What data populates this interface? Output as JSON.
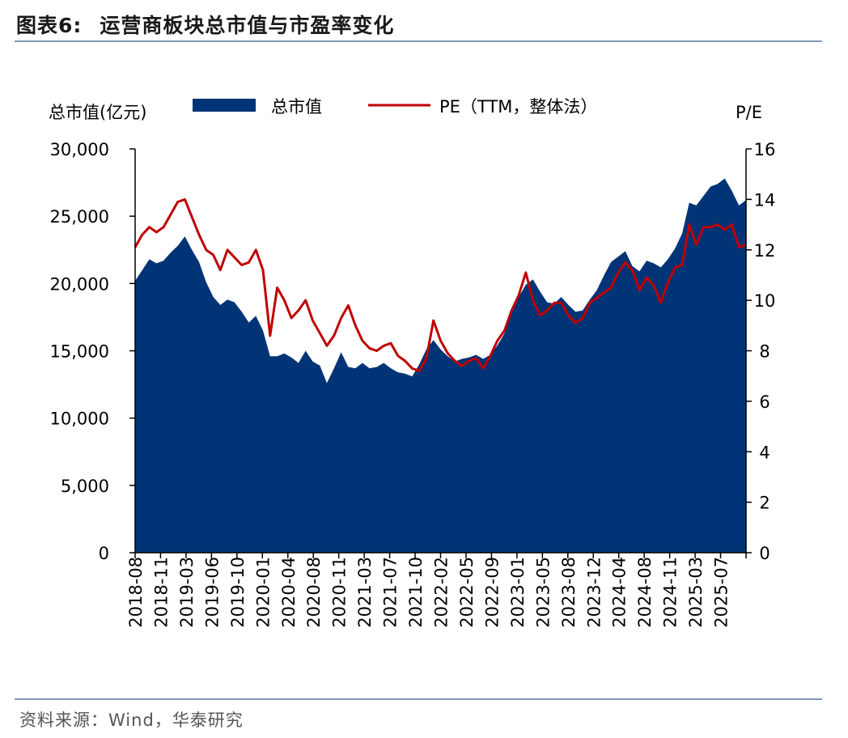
{
  "header": {
    "figure_no": "图表6:",
    "title": "运营商板块总市值与市盈率变化"
  },
  "footer": {
    "source": "资料来源：Wind，华泰研究"
  },
  "colors": {
    "market_cap": "#003476",
    "pe": "#c00000",
    "rule": "#8096b4"
  },
  "chart_data": {
    "type": "area",
    "left_axis": {
      "label": "总市值(亿元)",
      "ylim": [
        0,
        30000
      ],
      "ticks": [
        0,
        5000,
        10000,
        15000,
        20000,
        25000,
        30000
      ],
      "tick_labels": [
        "0",
        "5,000",
        "10,000",
        "15,000",
        "20,000",
        "25,000",
        "30,000"
      ]
    },
    "right_axis": {
      "label": "P/E",
      "ylim": [
        0,
        16
      ],
      "ticks": [
        0,
        2,
        4,
        6,
        8,
        10,
        12,
        14,
        16
      ],
      "tick_labels": [
        "0",
        "2",
        "4",
        "6",
        "8",
        "10",
        "12",
        "14",
        "16"
      ]
    },
    "x_tick_labels": [
      "2018-08",
      "2018-11",
      "2019-03",
      "2019-06",
      "2019-10",
      "2020-01",
      "2020-04",
      "2020-08",
      "2020-11",
      "2021-03",
      "2021-07",
      "2021-10",
      "2022-02",
      "2022-05",
      "2022-09",
      "2023-01",
      "2023-05",
      "2023-08",
      "2023-12",
      "2024-04",
      "2024-08",
      "2024-11",
      "2025-03",
      "2025-07"
    ],
    "legend": [
      {
        "name": "总市值",
        "kind": "area"
      },
      {
        "name": "PE（TTM，整体法）",
        "kind": "line"
      }
    ],
    "legend_position": "top-center",
    "grid": false,
    "series": [
      {
        "name": "总市值",
        "axis": "left",
        "x": [
          "2018-08",
          "2018-09",
          "2018-10",
          "2018-11",
          "2018-12",
          "2019-01",
          "2019-02",
          "2019-03",
          "2019-04",
          "2019-05",
          "2019-06",
          "2019-07",
          "2019-08",
          "2019-09",
          "2019-10",
          "2019-11",
          "2019-12",
          "2020-01",
          "2020-02",
          "2020-03",
          "2020-04",
          "2020-05",
          "2020-06",
          "2020-07",
          "2020-08",
          "2020-09",
          "2020-10",
          "2020-11",
          "2020-12",
          "2021-01",
          "2021-02",
          "2021-03",
          "2021-04",
          "2021-05",
          "2021-06",
          "2021-07",
          "2021-08",
          "2021-09",
          "2021-10",
          "2021-11",
          "2021-12",
          "2022-01",
          "2022-02",
          "2022-03",
          "2022-04",
          "2022-05",
          "2022-06",
          "2022-07",
          "2022-08",
          "2022-09",
          "2022-10",
          "2022-11",
          "2022-12",
          "2023-01",
          "2023-02",
          "2023-03",
          "2023-04",
          "2023-05",
          "2023-06",
          "2023-07",
          "2023-08",
          "2023-09",
          "2023-10",
          "2023-11",
          "2023-12",
          "2024-01",
          "2024-02",
          "2024-03",
          "2024-04",
          "2024-05",
          "2024-06",
          "2024-07",
          "2024-08",
          "2024-09",
          "2024-10",
          "2024-11",
          "2024-12",
          "2025-01",
          "2025-02",
          "2025-03",
          "2025-04",
          "2025-05",
          "2025-06",
          "2025-07",
          "2025-08",
          "2025-09",
          "2025-10"
        ],
        "values": [
          20200,
          21000,
          21800,
          21500,
          21700,
          22300,
          22800,
          23500,
          22500,
          21600,
          20100,
          19000,
          18400,
          18800,
          18600,
          17900,
          17100,
          17600,
          16500,
          14600,
          14600,
          14800,
          14500,
          14100,
          15000,
          14200,
          13900,
          12600,
          13700,
          14900,
          13800,
          13700,
          14100,
          13700,
          13800,
          14100,
          13700,
          13400,
          13300,
          13100,
          14000,
          15100,
          15800,
          15100,
          14600,
          14200,
          14400,
          14500,
          14700,
          14400,
          14700,
          15400,
          16300,
          17800,
          19000,
          19900,
          20300,
          19400,
          18600,
          18500,
          19000,
          18400,
          17900,
          18000,
          18800,
          19500,
          20600,
          21600,
          22000,
          22400,
          21300,
          20900,
          21700,
          21500,
          21200,
          21800,
          22600,
          23700,
          26000,
          25800,
          26500,
          27200,
          27400,
          27800,
          26900,
          25800,
          26200
        ]
      },
      {
        "name": "PE（TTM，整体法）",
        "axis": "right",
        "x": [
          "2018-08",
          "2018-09",
          "2018-10",
          "2018-11",
          "2018-12",
          "2019-01",
          "2019-02",
          "2019-03",
          "2019-04",
          "2019-05",
          "2019-06",
          "2019-07",
          "2019-08",
          "2019-09",
          "2019-10",
          "2019-11",
          "2019-12",
          "2020-01",
          "2020-02",
          "2020-03",
          "2020-04",
          "2020-05",
          "2020-06",
          "2020-07",
          "2020-08",
          "2020-09",
          "2020-10",
          "2020-11",
          "2020-12",
          "2021-01",
          "2021-02",
          "2021-03",
          "2021-04",
          "2021-05",
          "2021-06",
          "2021-07",
          "2021-08",
          "2021-09",
          "2021-10",
          "2021-11",
          "2021-12",
          "2022-01",
          "2022-02",
          "2022-03",
          "2022-04",
          "2022-05",
          "2022-06",
          "2022-07",
          "2022-08",
          "2022-09",
          "2022-10",
          "2022-11",
          "2022-12",
          "2023-01",
          "2023-02",
          "2023-03",
          "2023-04",
          "2023-05",
          "2023-06",
          "2023-07",
          "2023-08",
          "2023-09",
          "2023-10",
          "2023-11",
          "2023-12",
          "2024-01",
          "2024-02",
          "2024-03",
          "2024-04",
          "2024-05",
          "2024-06",
          "2024-07",
          "2024-08",
          "2024-09",
          "2024-10",
          "2024-11",
          "2024-12",
          "2025-01",
          "2025-02",
          "2025-03",
          "2025-04",
          "2025-05",
          "2025-06",
          "2025-07",
          "2025-08",
          "2025-09",
          "2025-10"
        ],
        "values": [
          12.1,
          12.6,
          12.9,
          12.7,
          12.9,
          13.4,
          13.9,
          14.0,
          13.3,
          12.6,
          12.0,
          11.8,
          11.2,
          12.0,
          11.7,
          11.4,
          11.5,
          12.0,
          11.2,
          8.6,
          10.5,
          10.0,
          9.3,
          9.6,
          10.0,
          9.2,
          8.7,
          8.2,
          8.6,
          9.3,
          9.8,
          9.0,
          8.4,
          8.1,
          8.0,
          8.2,
          8.3,
          7.8,
          7.6,
          7.3,
          7.2,
          7.7,
          9.2,
          8.4,
          7.9,
          7.6,
          7.4,
          7.6,
          7.7,
          7.3,
          7.8,
          8.4,
          8.8,
          9.6,
          10.2,
          11.1,
          10.0,
          9.4,
          9.6,
          9.9,
          9.9,
          9.4,
          9.1,
          9.3,
          9.9,
          10.1,
          10.3,
          10.5,
          11.1,
          11.5,
          11.2,
          10.4,
          10.9,
          10.6,
          9.9,
          10.7,
          11.3,
          11.4,
          13.0,
          12.2,
          12.9,
          12.9,
          13.0,
          12.8,
          13.0,
          12.1,
          12.2
        ]
      }
    ]
  }
}
